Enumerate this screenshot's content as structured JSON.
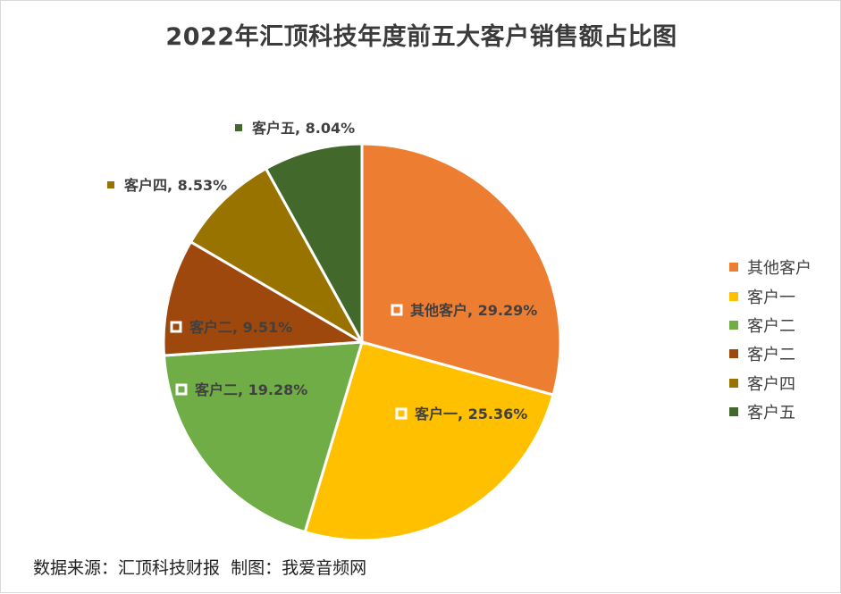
{
  "chart_data": {
    "type": "pie",
    "title": "2022年汇顶科技年度前五大客户销售额占比图",
    "categories": [
      "其他客户",
      "客户一",
      "客户二",
      "客户二",
      "客户四",
      "客户五"
    ],
    "values": [
      29.29,
      25.36,
      19.28,
      9.51,
      8.53,
      8.04
    ],
    "value_unit": "%",
    "data_labels": [
      "其他客户, 29.29%",
      "客户一, 25.36%",
      "客户二, 19.28%",
      "客户二, 9.51%",
      "客户四, 8.53%",
      "客户五, 8.04%"
    ],
    "colors": [
      "#ED7D31",
      "#FFC000",
      "#70AD47",
      "#9E480E",
      "#997300",
      "#43682B"
    ],
    "legend": {
      "position": "right",
      "entries": [
        "其他客户",
        "客户一",
        "客户二",
        "客户二",
        "客户四",
        "客户五"
      ]
    },
    "start_angle": "12 o'clock, clockwise"
  },
  "footer": {
    "source": "数据来源：汇顶科技财报  制图：我爱音频网"
  }
}
